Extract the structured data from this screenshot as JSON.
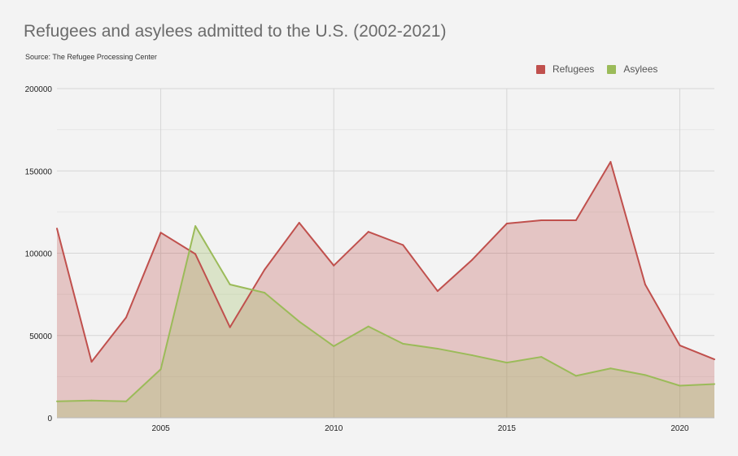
{
  "chart_data": {
    "type": "area",
    "title": "Refugees and asylees admitted to the U.S. (2002-2021)",
    "subtitle": "Source: The Refugee Processing Center",
    "x": [
      2002,
      2003,
      2004,
      2005,
      2006,
      2007,
      2008,
      2009,
      2010,
      2011,
      2012,
      2013,
      2014,
      2015,
      2016,
      2017,
      2018,
      2019,
      2020,
      2021
    ],
    "series": [
      {
        "name": "Refugees",
        "color": "#c0504d",
        "values": [
          115000,
          34000,
          61000,
          112500,
          99500,
          55000,
          90000,
          118500,
          92500,
          113000,
          105000,
          77000,
          96000,
          118000,
          120000,
          120000,
          155500,
          81000,
          44000,
          35500
        ]
      },
      {
        "name": "Asylees",
        "color": "#9bbb59",
        "values": [
          10000,
          10500,
          10000,
          29500,
          116500,
          81000,
          76000,
          58500,
          43500,
          55500,
          45000,
          42000,
          38000,
          33500,
          37000,
          25500,
          30000,
          26000,
          19500,
          20500
        ]
      }
    ],
    "xticks": [
      2005,
      2010,
      2015,
      2020
    ],
    "yticks": [
      0,
      50000,
      100000,
      150000,
      200000
    ],
    "xlim": [
      2002,
      2021
    ],
    "ylim": [
      0,
      200000
    ],
    "grid": true,
    "legend_position": "top-right"
  }
}
